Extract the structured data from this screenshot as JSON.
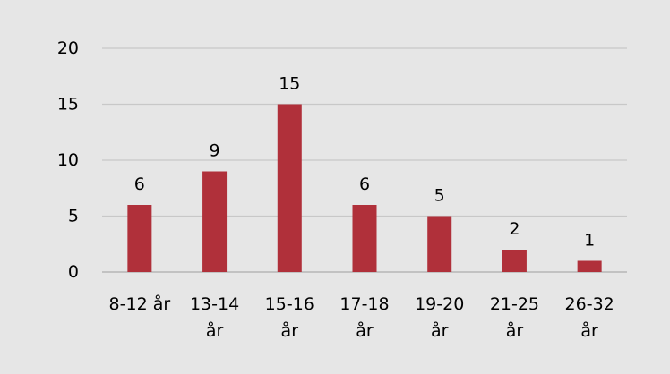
{
  "chart_data": {
    "type": "bar",
    "title": "",
    "xlabel": "",
    "ylabel": "",
    "categories": [
      [
        "8-12 år"
      ],
      [
        "13-14",
        "år"
      ],
      [
        "15-16",
        "år"
      ],
      [
        "17-18",
        "år"
      ],
      [
        "19-20",
        "år"
      ],
      [
        "21-25",
        "år"
      ],
      [
        "26-32",
        "år"
      ]
    ],
    "values": [
      6,
      9,
      15,
      6,
      5,
      2,
      1
    ],
    "data_labels": [
      "6",
      "9",
      "15",
      "6",
      "5",
      "2",
      "1"
    ],
    "ylim": [
      0,
      20
    ],
    "y_ticks": [
      0,
      5,
      10,
      15,
      20
    ],
    "y_tick_labels": [
      "0",
      "5",
      "10",
      "15",
      "20"
    ],
    "grid": true,
    "legend": "none",
    "colors": {
      "bar": "#b0303a",
      "grid": "#c8c8c8",
      "background": "#e6e6e6"
    }
  }
}
